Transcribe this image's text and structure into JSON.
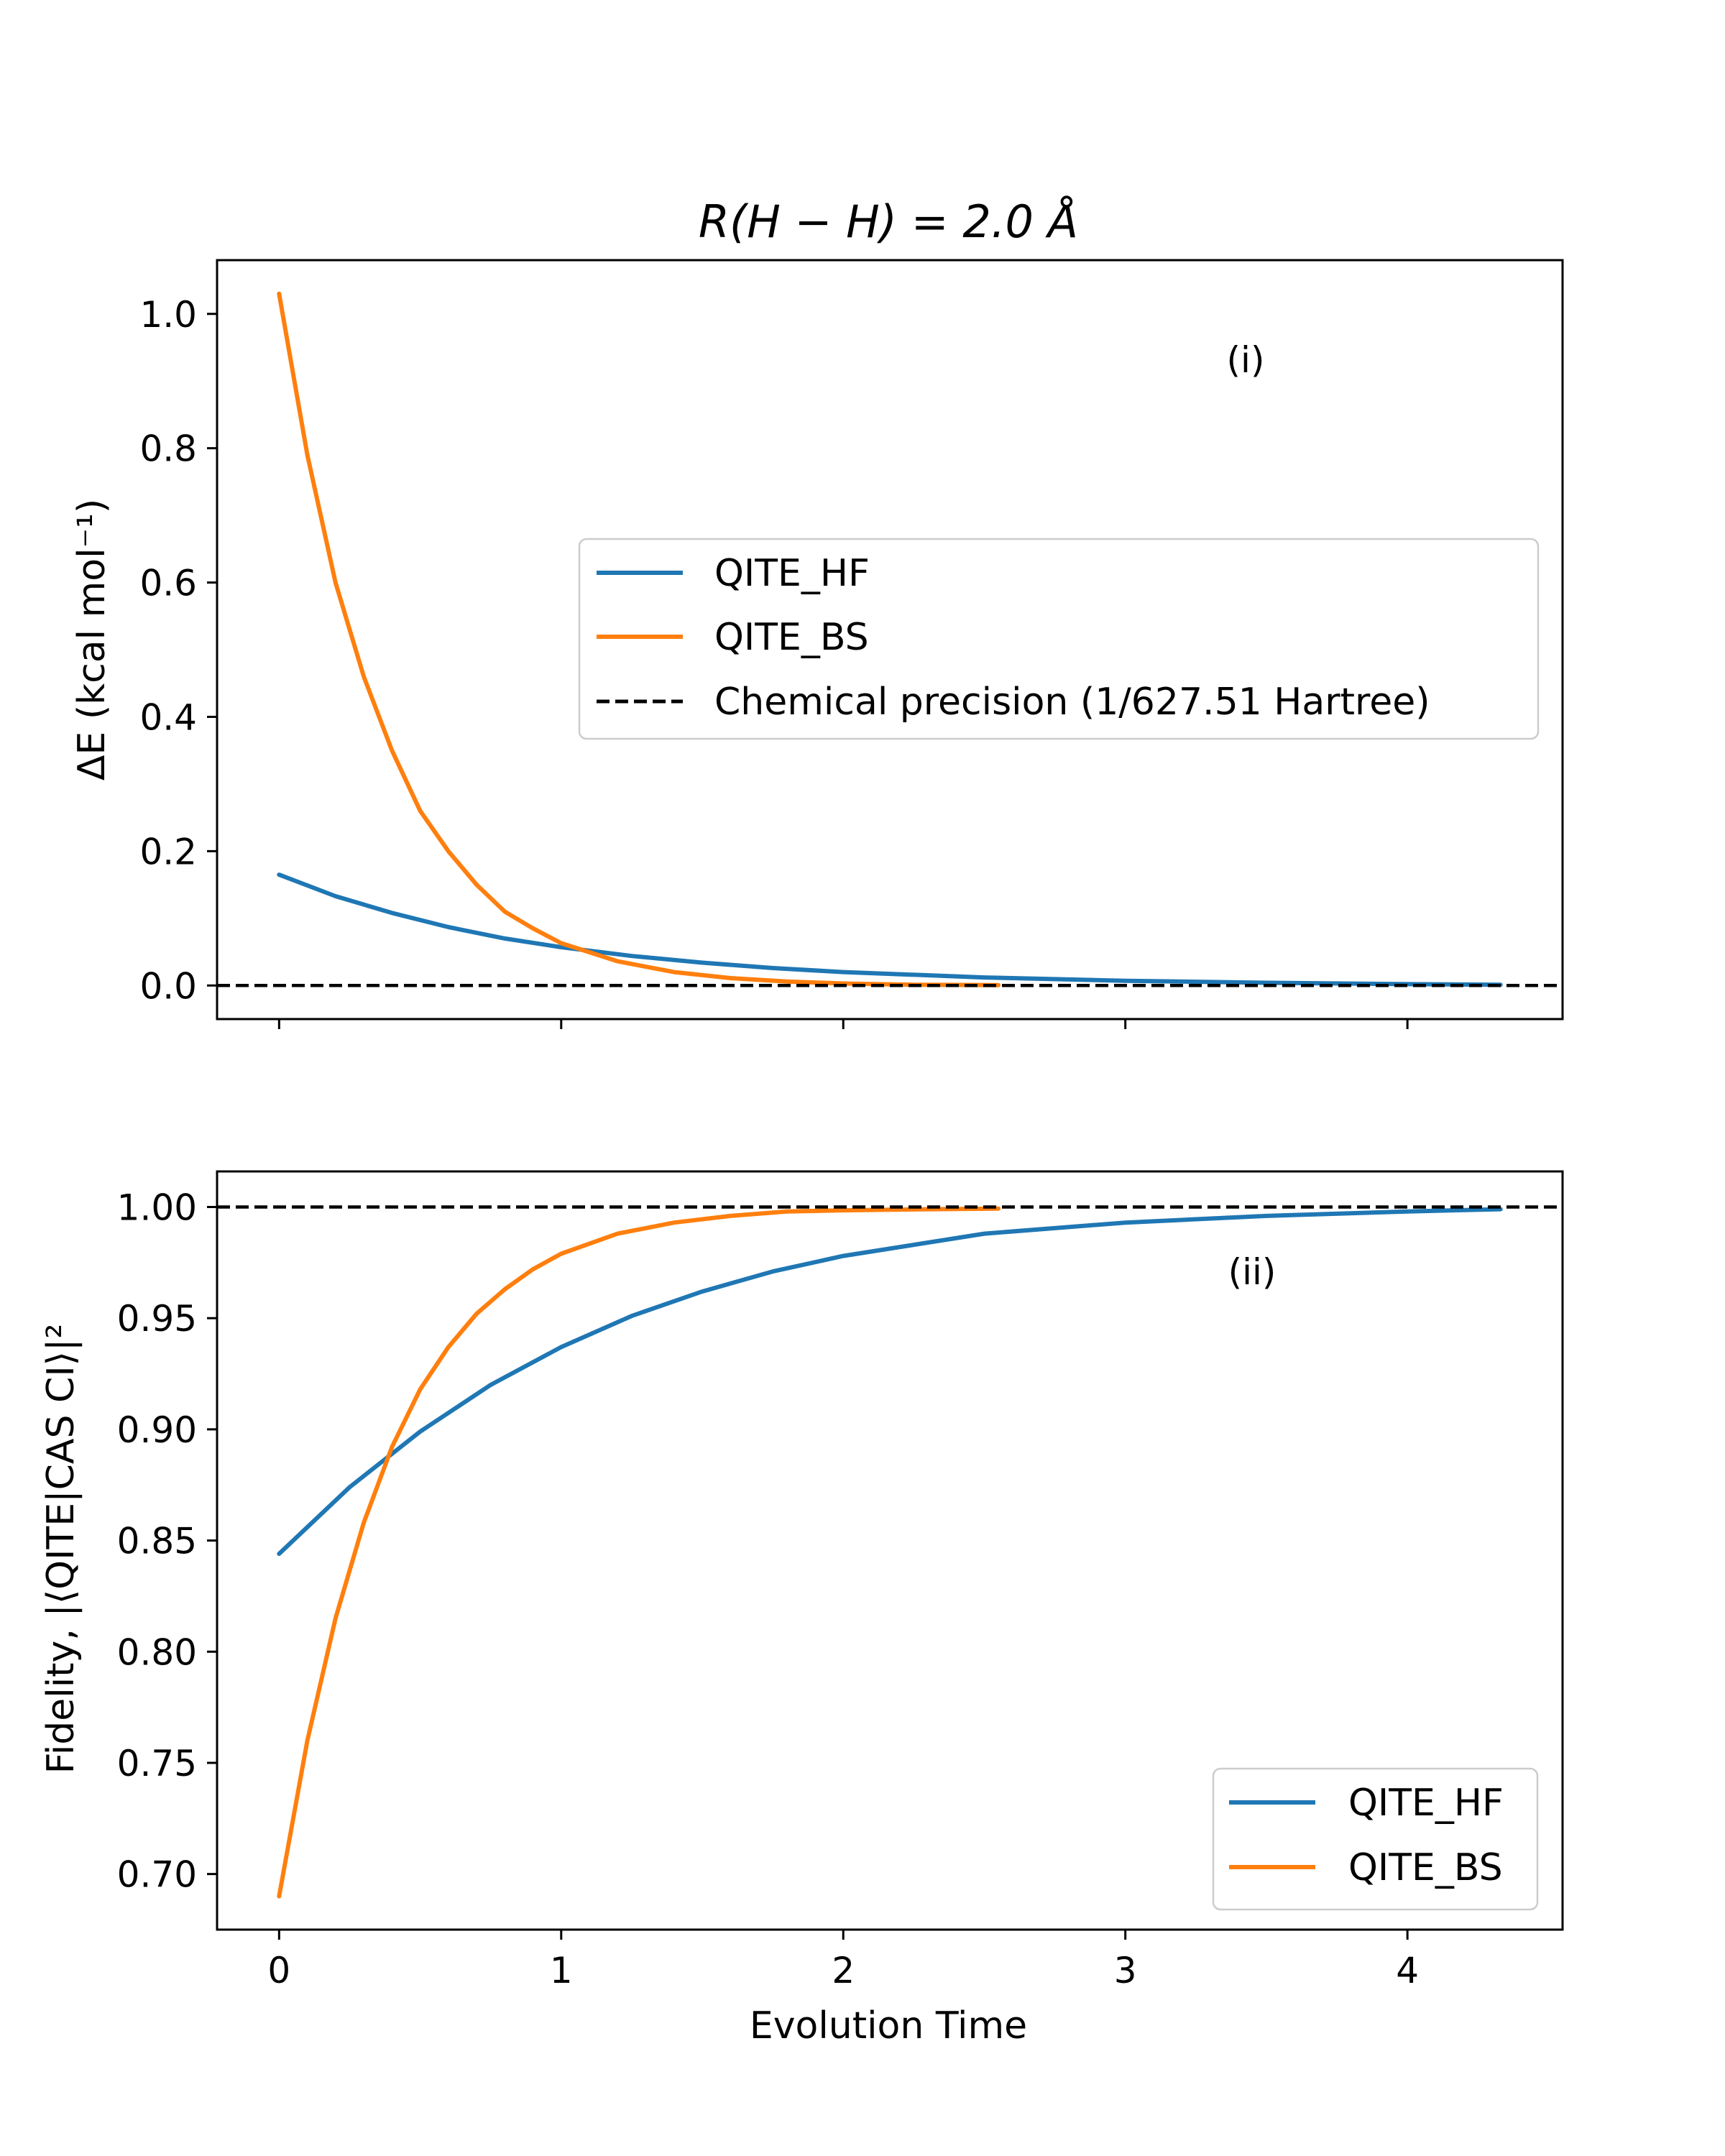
{
  "colors": {
    "QITE_HF": "#1f77b4",
    "QITE_BS": "#ff7f0e",
    "reference": "#000000"
  },
  "chart_data": [
    {
      "type": "line",
      "panel_tag": "(i)",
      "title": "R(H − H) = 2.0 Å",
      "ylabel": "ΔE (kcal mol⁻¹)",
      "xlabel": "",
      "xlim": [
        -0.22,
        4.55
      ],
      "ylim": [
        -0.05,
        1.08
      ],
      "xticks": [
        0,
        1,
        2,
        3,
        4
      ],
      "show_x_tick_labels": false,
      "yticks": [
        0.0,
        0.2,
        0.4,
        0.6,
        0.8,
        1.0
      ],
      "ytick_labels": [
        "0.0",
        "0.2",
        "0.4",
        "0.6",
        "0.8",
        "1.0"
      ],
      "grid": false,
      "legend_position": "center-right",
      "series": [
        {
          "name": "QITE_HF",
          "x": [
            0,
            0.2,
            0.4,
            0.6,
            0.8,
            1.0,
            1.25,
            1.5,
            1.75,
            2.0,
            2.5,
            3.0,
            3.5,
            4.0,
            4.33
          ],
          "y": [
            0.165,
            0.133,
            0.108,
            0.087,
            0.07,
            0.057,
            0.044,
            0.034,
            0.026,
            0.02,
            0.012,
            0.007,
            0.004,
            0.002,
            0.001
          ]
        },
        {
          "name": "QITE_BS",
          "x": [
            0,
            0.1,
            0.2,
            0.3,
            0.4,
            0.5,
            0.6,
            0.7,
            0.8,
            0.9,
            1.0,
            1.2,
            1.4,
            1.6,
            1.8,
            2.0,
            2.25,
            2.55
          ],
          "y": [
            1.03,
            0.79,
            0.6,
            0.46,
            0.35,
            0.26,
            0.2,
            0.15,
            0.11,
            0.085,
            0.063,
            0.036,
            0.02,
            0.011,
            0.006,
            0.003,
            0.001,
            0.0005
          ]
        },
        {
          "name": "Chemical precision (1/627.51 Hartree)",
          "style": "dashed",
          "y_constant": 0.0
        }
      ]
    },
    {
      "type": "line",
      "panel_tag": "(ii)",
      "title": "",
      "ylabel": "Fidelity, |⟨QITE|CAS CI⟩|²",
      "xlabel": "Evolution Time",
      "xlim": [
        -0.22,
        4.55
      ],
      "ylim": [
        0.675,
        1.016
      ],
      "xticks": [
        0,
        1,
        2,
        3,
        4
      ],
      "xtick_labels": [
        "0",
        "1",
        "2",
        "3",
        "4"
      ],
      "yticks": [
        0.7,
        0.75,
        0.8,
        0.85,
        0.9,
        0.95,
        1.0
      ],
      "ytick_labels": [
        "0.70",
        "0.75",
        "0.80",
        "0.85",
        "0.90",
        "0.95",
        "1.00"
      ],
      "grid": false,
      "legend_position": "lower-right",
      "series": [
        {
          "name": "QITE_HF",
          "x": [
            0,
            0.25,
            0.5,
            0.75,
            1.0,
            1.25,
            1.5,
            1.75,
            2.0,
            2.5,
            3.0,
            3.5,
            4.0,
            4.33
          ],
          "y": [
            0.844,
            0.874,
            0.899,
            0.92,
            0.937,
            0.951,
            0.962,
            0.971,
            0.978,
            0.988,
            0.993,
            0.996,
            0.998,
            0.999
          ]
        },
        {
          "name": "QITE_BS",
          "x": [
            0,
            0.1,
            0.2,
            0.3,
            0.4,
            0.5,
            0.6,
            0.7,
            0.8,
            0.9,
            1.0,
            1.2,
            1.4,
            1.6,
            1.8,
            2.0,
            2.3,
            2.55
          ],
          "y": [
            0.69,
            0.76,
            0.815,
            0.858,
            0.892,
            0.918,
            0.937,
            0.952,
            0.963,
            0.972,
            0.979,
            0.988,
            0.993,
            0.996,
            0.998,
            0.9985,
            0.999,
            0.9993
          ]
        },
        {
          "name": "",
          "style": "dashed",
          "y_constant": 1.0
        }
      ]
    }
  ]
}
